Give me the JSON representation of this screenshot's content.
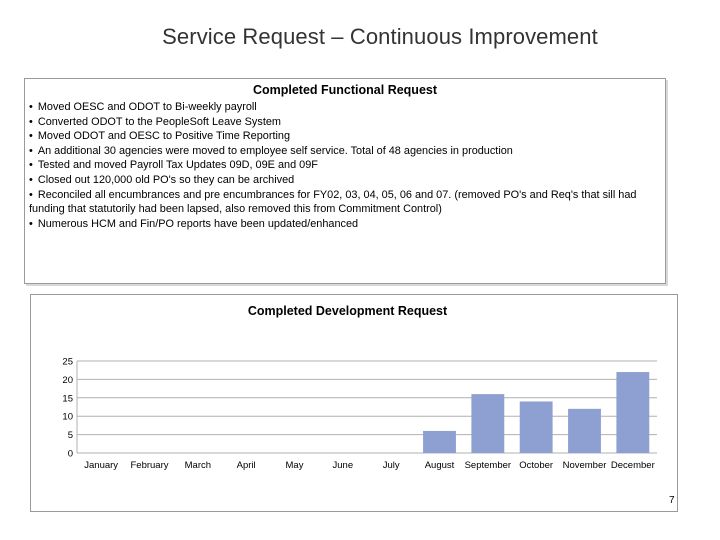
{
  "slide": {
    "title": "Service Request – Continuous Improvement",
    "page_number": "7"
  },
  "functional": {
    "heading": "Completed Functional Request",
    "bullet_char": "•",
    "items": [
      "Moved OESC and ODOT to Bi-weekly payroll",
      "Converted ODOT to the PeopleSoft Leave System",
      "Moved ODOT and OESC to Positive Time Reporting",
      "An additional 30 agencies were moved to employee self service. Total of 48 agencies in production",
      "Tested and moved Payroll Tax Updates 09D, 09E and 09F",
      "Closed out 120,000 old PO's so they can be archived",
      "Reconciled all encumbrances and pre encumbrances for FY02, 03, 04, 05, 06 and 07. (removed PO's and Req's that sill had funding that statutorily had been lapsed, also removed this from Commitment Control)",
      "Numerous HCM and Fin/PO reports have been updated/enhanced"
    ]
  },
  "chart_data": {
    "type": "bar",
    "title": "Completed Development Request",
    "categories": [
      "January",
      "February",
      "March",
      "April",
      "May",
      "June",
      "July",
      "August",
      "September",
      "October",
      "November",
      "December"
    ],
    "values": [
      0,
      0,
      0,
      0,
      0,
      0,
      0,
      6,
      16,
      14,
      12,
      22
    ],
    "ylim": [
      0,
      25
    ],
    "yticks": [
      0,
      5,
      10,
      15,
      20,
      25
    ],
    "grid": true,
    "bar_color": "#8e9fd1",
    "grid_color": "#b0b0b0"
  }
}
